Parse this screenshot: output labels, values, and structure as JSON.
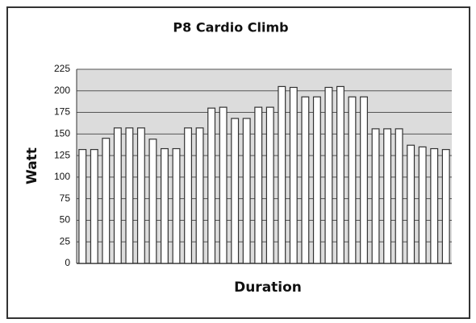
{
  "chart_data": {
    "type": "bar",
    "title": "P8 Cardio Climb",
    "x_label": "Duration",
    "y_label": "Watt",
    "values": [
      132,
      132,
      145,
      157,
      157,
      157,
      144,
      133,
      133,
      157,
      157,
      180,
      181,
      168,
      168,
      181,
      181,
      205,
      204,
      193,
      193,
      204,
      205,
      193,
      193,
      156,
      156,
      156,
      137,
      135,
      133,
      132
    ],
    "color": "#ffffff",
    "ylim": [
      0,
      225
    ],
    "yticks": [
      0,
      25,
      50,
      75,
      100,
      125,
      150,
      175,
      200,
      225
    ],
    "grid": true
  }
}
